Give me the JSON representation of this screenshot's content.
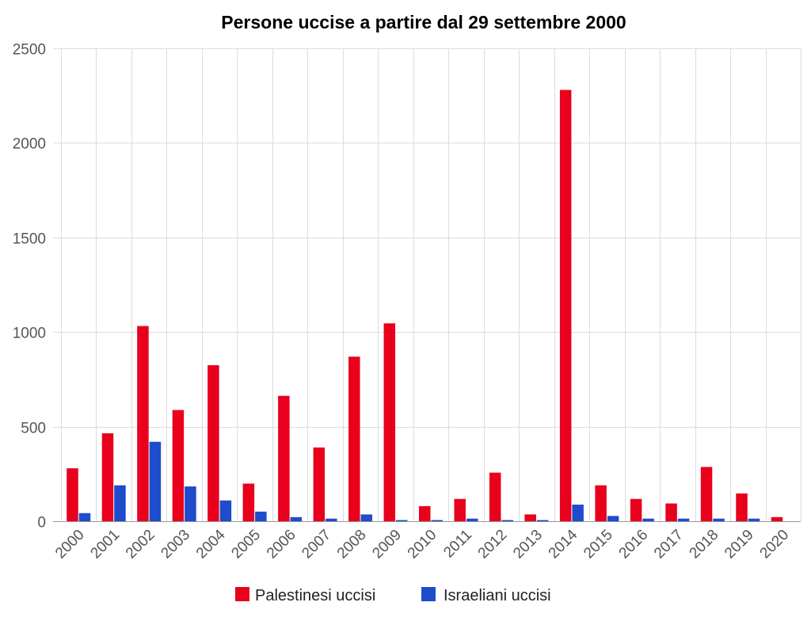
{
  "chart_data": {
    "type": "bar",
    "title": "Persone uccise a partire dal 29 settembre 2000",
    "xlabel": "",
    "ylabel": "",
    "ylim": [
      0,
      2500
    ],
    "yticks": [
      "0",
      "500",
      "1000",
      "1500",
      "2000",
      "2500"
    ],
    "grid": true,
    "legend_position": "bottom",
    "categories": [
      "2000",
      "2001",
      "2002",
      "2003",
      "2004",
      "2005",
      "2006",
      "2007",
      "2008",
      "2009",
      "2010",
      "2011",
      "2012",
      "2013",
      "2014",
      "2015",
      "2016",
      "2017",
      "2018",
      "2019",
      "2020"
    ],
    "series": [
      {
        "name": "Palestinesi uccisi",
        "color": "#e8001c",
        "values": [
          280,
          465,
          1032,
          588,
          825,
          199,
          663,
          390,
          870,
          1046,
          80,
          118,
          257,
          36,
          2280,
          190,
          118,
          94,
          287,
          147,
          22
        ]
      },
      {
        "name": "Israeliani uccisi",
        "color": "#1f4ccc",
        "values": [
          43,
          190,
          420,
          184,
          110,
          51,
          22,
          14,
          36,
          6,
          6,
          14,
          6,
          6,
          88,
          28,
          14,
          14,
          14,
          14,
          0
        ]
      }
    ]
  }
}
